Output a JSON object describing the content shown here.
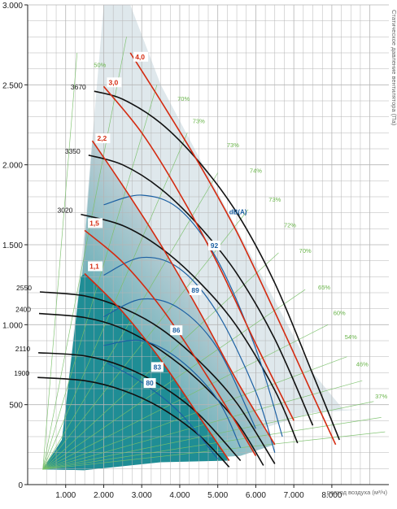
{
  "chart_data": {
    "type": "line",
    "xlabel": "расход воздуха (м³/ч)",
    "ylabel": "Статическое давление вентилятора (Па)",
    "xlim": [
      0,
      9500
    ],
    "ylim": [
      0,
      3000
    ],
    "xticks": [
      {
        "value": 1000,
        "label": "1.000"
      },
      {
        "value": 2000,
        "label": "2.000"
      },
      {
        "value": 3000,
        "label": "3.000"
      },
      {
        "value": 4000,
        "label": "4.000"
      },
      {
        "value": 5000,
        "label": "5.000"
      },
      {
        "value": 6000,
        "label": "6.000"
      },
      {
        "value": 7000,
        "label": "7.000"
      },
      {
        "value": 8000,
        "label": "8.000"
      }
    ],
    "yticks": [
      {
        "value": 0,
        "label": "0"
      },
      {
        "value": 500,
        "label": "500"
      },
      {
        "value": 1000,
        "label": "1.000"
      },
      {
        "value": 1500,
        "label": "1.500"
      },
      {
        "value": 2000,
        "label": "2.000"
      },
      {
        "value": 2500,
        "label": "2.500"
      },
      {
        "value": 3000,
        "label": "3.000"
      }
    ],
    "grid": true,
    "speed_curves": [
      {
        "label": "1900",
        "points": [
          [
            260,
            670
          ],
          [
            1500,
            650
          ],
          [
            2500,
            590
          ],
          [
            3500,
            480
          ],
          [
            4500,
            310
          ],
          [
            5300,
            110
          ]
        ]
      },
      {
        "label": "2110",
        "points": [
          [
            280,
            825
          ],
          [
            1500,
            805
          ],
          [
            2500,
            740
          ],
          [
            3500,
            620
          ],
          [
            4500,
            440
          ],
          [
            5600,
            150
          ]
        ]
      },
      {
        "label": "2400",
        "points": [
          [
            300,
            1070
          ],
          [
            1500,
            1045
          ],
          [
            2500,
            975
          ],
          [
            3500,
            840
          ],
          [
            4500,
            650
          ],
          [
            5500,
            390
          ],
          [
            6200,
            120
          ]
        ]
      },
      {
        "label": "2550",
        "points": [
          [
            320,
            1205
          ],
          [
            1500,
            1180
          ],
          [
            2500,
            1105
          ],
          [
            3500,
            975
          ],
          [
            4500,
            775
          ],
          [
            5500,
            510
          ],
          [
            6500,
            130
          ]
        ]
      },
      {
        "label": "3020",
        "points": [
          [
            1400,
            1690
          ],
          [
            2500,
            1620
          ],
          [
            3500,
            1480
          ],
          [
            4500,
            1270
          ],
          [
            5500,
            990
          ],
          [
            6500,
            590
          ],
          [
            7100,
            260
          ]
        ]
      },
      {
        "label": "3350",
        "points": [
          [
            1600,
            2060
          ],
          [
            2500,
            2000
          ],
          [
            3500,
            1850
          ],
          [
            4500,
            1620
          ],
          [
            5500,
            1320
          ],
          [
            6500,
            910
          ],
          [
            7500,
            370
          ]
        ]
      },
      {
        "label": "3670",
        "points": [
          [
            1750,
            2460
          ],
          [
            2500,
            2410
          ],
          [
            3500,
            2260
          ],
          [
            4500,
            2020
          ],
          [
            5500,
            1700
          ],
          [
            6500,
            1260
          ],
          [
            7500,
            690
          ],
          [
            8200,
            280
          ]
        ]
      }
    ],
    "power_curves": [
      {
        "label": "1,1",
        "points": [
          [
            1500,
            1320
          ],
          [
            2500,
            1080
          ],
          [
            3500,
            780
          ],
          [
            4500,
            430
          ],
          [
            5300,
            150
          ]
        ]
      },
      {
        "label": "1,5",
        "points": [
          [
            1500,
            1590
          ],
          [
            2500,
            1390
          ],
          [
            3500,
            1110
          ],
          [
            4500,
            760
          ],
          [
            5500,
            380
          ],
          [
            6000,
            180
          ]
        ]
      },
      {
        "label": "2,2",
        "points": [
          [
            1700,
            2150
          ],
          [
            2500,
            1870
          ],
          [
            3500,
            1500
          ],
          [
            4500,
            1090
          ],
          [
            5500,
            650
          ],
          [
            6500,
            250
          ]
        ]
      },
      {
        "label": "3,0",
        "points": [
          [
            2000,
            2490
          ],
          [
            3000,
            2200
          ],
          [
            4000,
            1820
          ],
          [
            5000,
            1380
          ],
          [
            6000,
            880
          ],
          [
            7000,
            400
          ]
        ]
      },
      {
        "label": "4,0",
        "points": [
          [
            2700,
            2700
          ],
          [
            3500,
            2400
          ],
          [
            4500,
            2010
          ],
          [
            5500,
            1580
          ],
          [
            6500,
            1080
          ],
          [
            7500,
            560
          ],
          [
            8100,
            250
          ]
        ]
      }
    ],
    "sound_curves": [
      {
        "label": "80",
        "points": [
          [
            2100,
            760
          ],
          [
            3000,
            640
          ],
          [
            4000,
            450
          ],
          [
            5000,
            160
          ]
        ]
      },
      {
        "label": "83",
        "points": [
          [
            2000,
            870
          ],
          [
            3000,
            900
          ],
          [
            4000,
            780
          ],
          [
            5000,
            530
          ],
          [
            5600,
            230
          ]
        ]
      },
      {
        "label": "86",
        "points": [
          [
            2000,
            1050
          ],
          [
            3000,
            1160
          ],
          [
            4000,
            1100
          ],
          [
            5000,
            850
          ],
          [
            6000,
            350
          ]
        ]
      },
      {
        "label": "89",
        "points": [
          [
            2000,
            1310
          ],
          [
            3000,
            1420
          ],
          [
            4000,
            1350
          ],
          [
            5000,
            1070
          ],
          [
            6000,
            580
          ],
          [
            6500,
            200
          ]
        ]
      },
      {
        "label": "92",
        "points": [
          [
            2000,
            1750
          ],
          [
            3000,
            1810
          ],
          [
            4000,
            1720
          ],
          [
            5000,
            1400
          ],
          [
            6000,
            850
          ],
          [
            6700,
            300
          ]
        ]
      }
    ],
    "sound_unit": "dB(A)",
    "efficiency_labels": [
      "50%",
      "70%",
      "73%",
      "73%",
      "74%",
      "73%",
      "72%",
      "70%",
      "65%",
      "60%",
      "54%",
      "46%",
      "37%"
    ],
    "colors": {
      "speed": "#111111",
      "power": "#d42a10",
      "sound": "#1d61a3",
      "efficiency": "#79c069",
      "region_dark": "#1f8d95",
      "region_light": "#dfe8ec",
      "grid": "#b5b5b5"
    }
  }
}
